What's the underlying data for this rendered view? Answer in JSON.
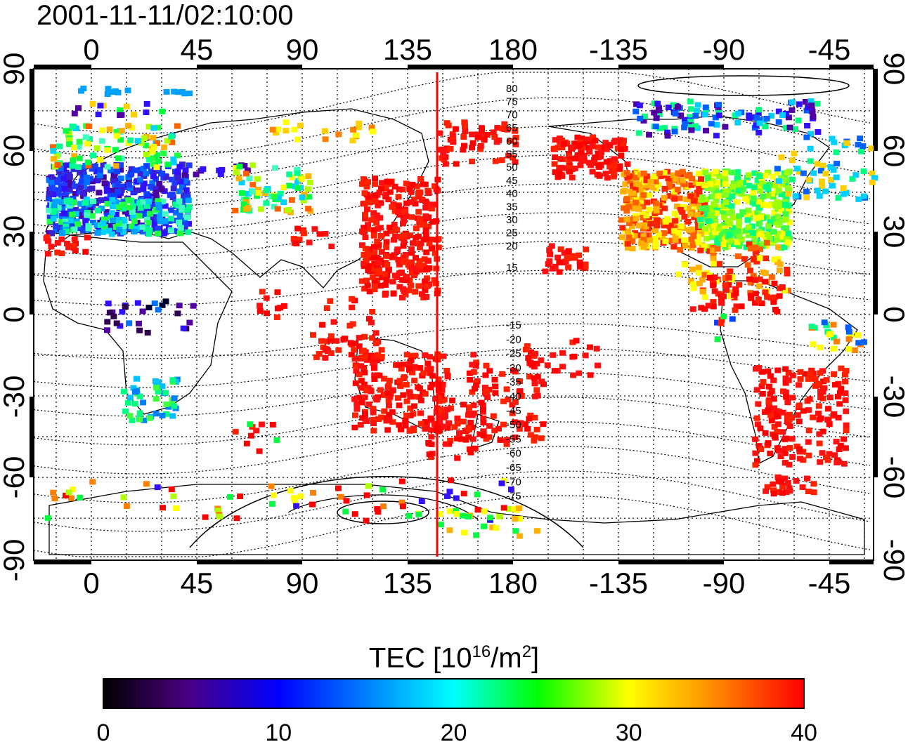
{
  "map": {
    "title": "2001-11-11/02:10:00",
    "top_lon_ticks": [
      "0",
      "45",
      "90",
      "135",
      "180",
      "-135",
      "-90",
      "-45"
    ],
    "bottom_lon_ticks": [
      "0",
      "45",
      "90",
      "135",
      "180",
      "-135",
      "-90",
      "-45"
    ],
    "left_lat_ticks": [
      "90",
      "60",
      "30",
      "0",
      "-30",
      "-60",
      "-90"
    ],
    "right_lat_ticks": [
      "90",
      "60",
      "30",
      "0",
      "-30",
      "-60",
      "-90"
    ],
    "contour_labels_north": [
      "80",
      "75",
      "70",
      "65",
      "60",
      "55",
      "50",
      "45",
      "40",
      "35",
      "30",
      "25",
      "20",
      "15"
    ],
    "contour_labels_south": [
      "-15",
      "-20",
      "-25",
      "-30",
      "-35",
      "-40",
      "-45",
      "-50",
      "-55",
      "-60",
      "-65",
      "-70",
      "-75"
    ],
    "marker_line_lon": 148,
    "marker_line_color": "#ff0000"
  },
  "colorbar": {
    "title_prefix": "TEC  [10",
    "title_exp1": "16",
    "title_mid": "/m",
    "title_exp2": "2",
    "title_suffix": "]",
    "ticks": [
      "0",
      "10",
      "20",
      "30",
      "40"
    ],
    "min": 0,
    "max": 40,
    "colors": [
      "#000000",
      "#5a0090",
      "#0000ff",
      "#00ffff",
      "#00ff00",
      "#ffff00",
      "#ff8c00",
      "#ff0000"
    ]
  }
}
